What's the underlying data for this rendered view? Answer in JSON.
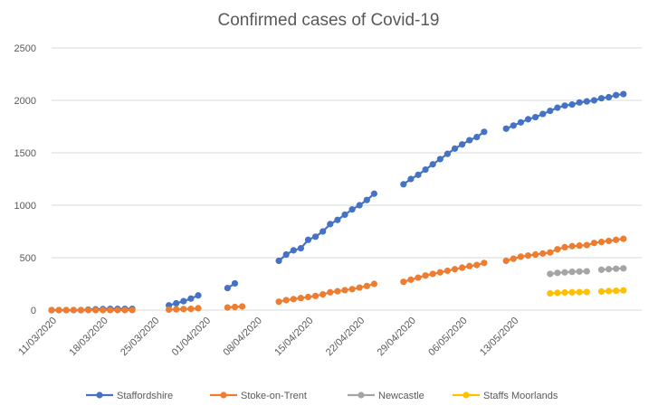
{
  "chart_data": {
    "type": "line",
    "title": "Confirmed cases of Covid-19",
    "xlabel": "",
    "ylabel": "",
    "ylim": [
      0,
      2500
    ],
    "yticks": [
      0,
      500,
      1000,
      1500,
      2000,
      2500
    ],
    "xticks": [
      "11/03/2020",
      "18/03/2020",
      "25/03/2020",
      "01/04/2020",
      "08/04/2020",
      "15/04/2020",
      "22/04/2020",
      "29/04/2020",
      "06/05/2020",
      "13/05/2020"
    ],
    "x_start": "11/03/2020",
    "grid": true,
    "legend": "bottom",
    "series": [
      {
        "name": "Staffordshire",
        "color": "#4472c4",
        "values": [
          0,
          0,
          0,
          0,
          0,
          5,
          8,
          10,
          12,
          12,
          12,
          12,
          null,
          null,
          null,
          null,
          45,
          65,
          85,
          110,
          140,
          null,
          null,
          null,
          210,
          255,
          null,
          null,
          null,
          null,
          null,
          470,
          530,
          570,
          590,
          670,
          700,
          750,
          820,
          860,
          910,
          960,
          1000,
          1050,
          1110,
          null,
          null,
          null,
          1200,
          1250,
          1290,
          1340,
          1390,
          1440,
          1490,
          1540,
          1580,
          1620,
          1650,
          1700,
          null,
          null,
          1730,
          1760,
          1790,
          1820,
          1840,
          1870,
          1900,
          1930,
          1950,
          1960,
          1980,
          1990,
          2000,
          2020,
          2030,
          2050,
          2060
        ]
      },
      {
        "name": "Stoke-on-Trent",
        "color": "#ed7d31",
        "values": [
          0,
          0,
          0,
          0,
          0,
          0,
          0,
          0,
          0,
          0,
          0,
          0,
          null,
          null,
          null,
          null,
          5,
          8,
          10,
          12,
          18,
          null,
          null,
          null,
          25,
          30,
          35,
          null,
          null,
          null,
          null,
          80,
          95,
          105,
          115,
          125,
          135,
          150,
          170,
          180,
          190,
          200,
          215,
          230,
          250,
          null,
          null,
          null,
          270,
          290,
          310,
          330,
          345,
          360,
          375,
          390,
          405,
          420,
          430,
          450,
          null,
          null,
          470,
          490,
          510,
          520,
          530,
          540,
          550,
          580,
          600,
          610,
          615,
          620,
          640,
          650,
          660,
          670,
          680
        ]
      },
      {
        "name": "Newcastle",
        "color": "#a5a5a5",
        "values": [
          null,
          null,
          null,
          null,
          null,
          null,
          null,
          null,
          null,
          null,
          null,
          null,
          null,
          null,
          null,
          null,
          null,
          null,
          null,
          null,
          null,
          null,
          null,
          null,
          null,
          null,
          null,
          null,
          null,
          null,
          null,
          null,
          null,
          null,
          null,
          null,
          null,
          null,
          null,
          null,
          null,
          null,
          null,
          null,
          null,
          null,
          null,
          null,
          null,
          null,
          null,
          null,
          null,
          null,
          null,
          null,
          null,
          null,
          null,
          null,
          null,
          null,
          null,
          null,
          null,
          null,
          null,
          null,
          345,
          355,
          360,
          365,
          368,
          370,
          null,
          385,
          390,
          395,
          398
        ]
      },
      {
        "name": "Staffs Moorlands",
        "color": "#ffc000",
        "values": [
          null,
          null,
          null,
          null,
          null,
          null,
          null,
          null,
          null,
          null,
          null,
          null,
          null,
          null,
          null,
          null,
          null,
          null,
          null,
          null,
          null,
          null,
          null,
          null,
          null,
          null,
          null,
          null,
          null,
          null,
          null,
          null,
          null,
          null,
          null,
          null,
          null,
          null,
          null,
          null,
          null,
          null,
          null,
          null,
          null,
          null,
          null,
          null,
          null,
          null,
          null,
          null,
          null,
          null,
          null,
          null,
          null,
          null,
          null,
          null,
          null,
          null,
          null,
          null,
          null,
          null,
          null,
          null,
          160,
          165,
          168,
          170,
          172,
          173,
          null,
          178,
          182,
          185,
          188
        ]
      }
    ]
  }
}
